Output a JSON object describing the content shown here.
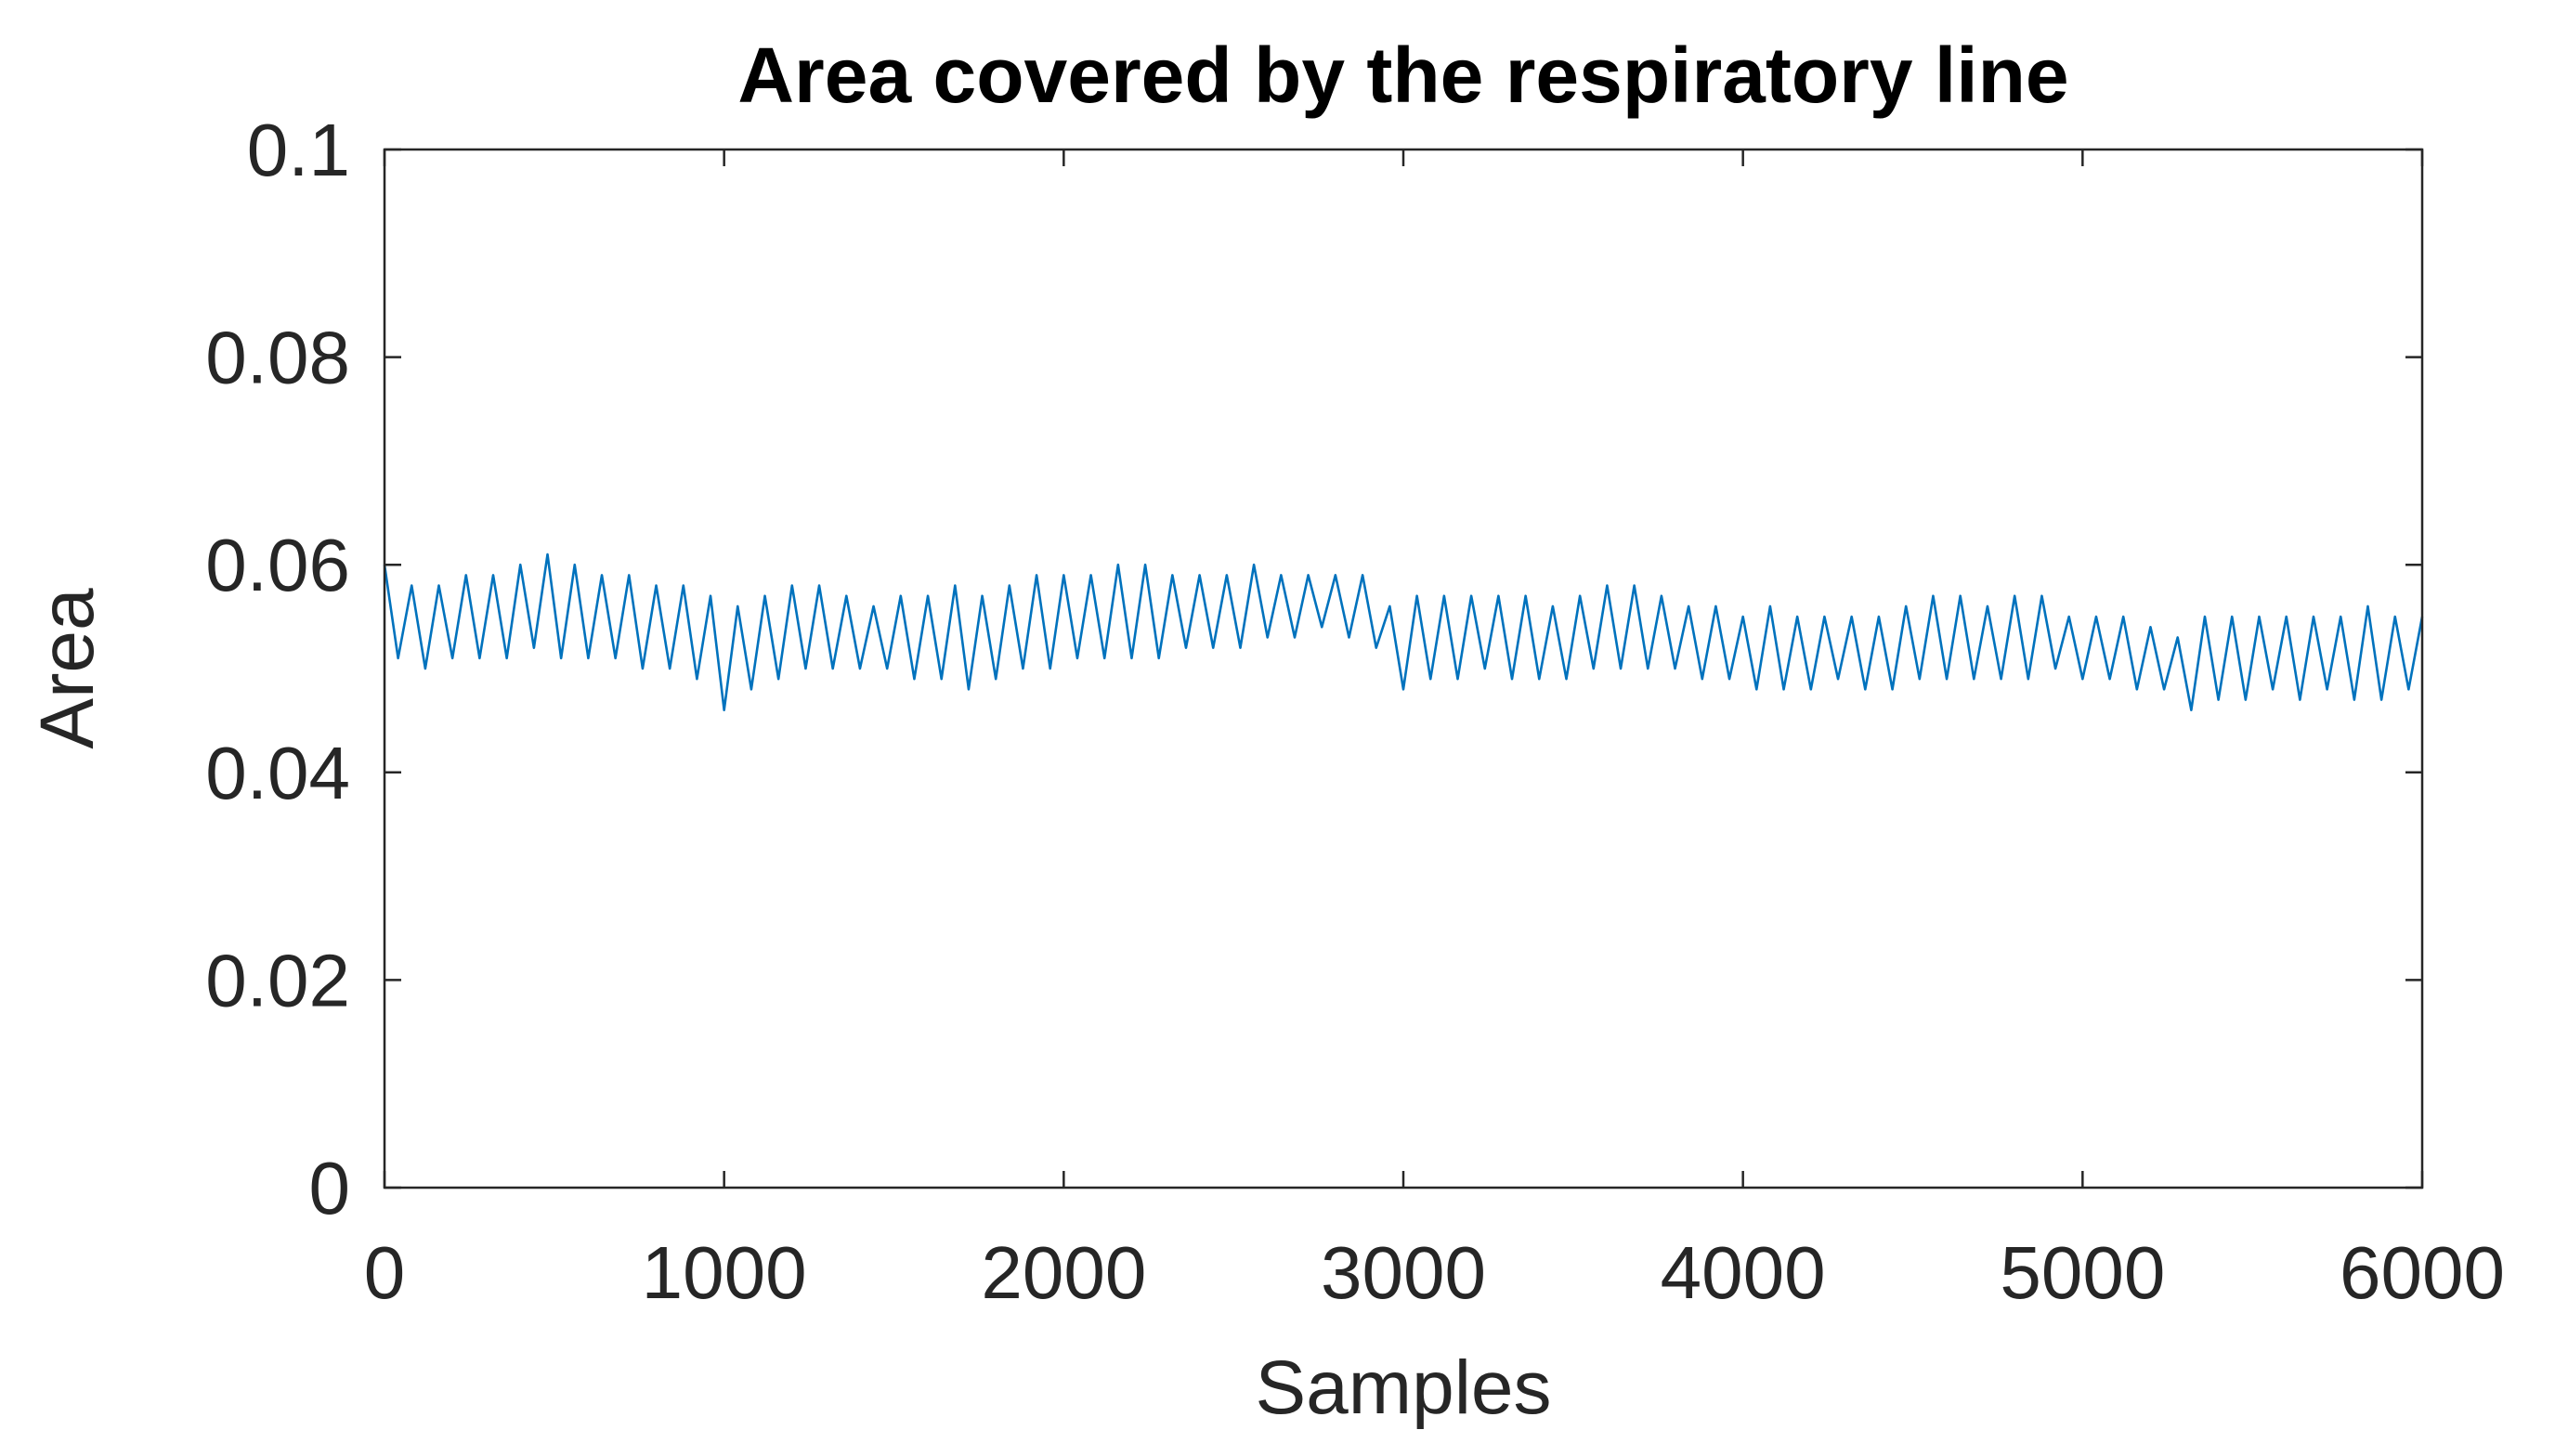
{
  "chart_data": {
    "type": "line",
    "title": "Area covered by the respiratory line",
    "xlabel": "Samples",
    "ylabel": "Area",
    "xlim": [
      0,
      6000
    ],
    "xticks": [
      0,
      1000,
      2000,
      3000,
      4000,
      5000,
      6000
    ],
    "ylim": [
      0,
      0.1
    ],
    "yticks": [
      0,
      0.02,
      0.04,
      0.06,
      0.08,
      0.1
    ],
    "box": true,
    "series": [
      {
        "color": "#0072bd",
        "x": [
          0,
          40,
          80,
          120,
          160,
          200,
          240,
          280,
          320,
          360,
          400,
          440,
          480,
          520,
          560,
          600,
          640,
          680,
          720,
          760,
          800,
          840,
          880,
          920,
          960,
          1000,
          1040,
          1080,
          1120,
          1160,
          1200,
          1240,
          1280,
          1320,
          1360,
          1400,
          1440,
          1480,
          1520,
          1560,
          1600,
          1640,
          1680,
          1720,
          1760,
          1800,
          1840,
          1880,
          1920,
          1960,
          2000,
          2040,
          2080,
          2120,
          2160,
          2200,
          2240,
          2280,
          2320,
          2360,
          2400,
          2440,
          2480,
          2520,
          2560,
          2600,
          2640,
          2680,
          2720,
          2760,
          2800,
          2840,
          2880,
          2920,
          2960,
          3000,
          3040,
          3080,
          3120,
          3160,
          3200,
          3240,
          3280,
          3320,
          3360,
          3400,
          3440,
          3480,
          3520,
          3560,
          3600,
          3640,
          3680,
          3720,
          3760,
          3800,
          3840,
          3880,
          3920,
          3960,
          4000,
          4040,
          4080,
          4120,
          4160,
          4200,
          4240,
          4280,
          4320,
          4360,
          4400,
          4440,
          4480,
          4520,
          4560,
          4600,
          4640,
          4680,
          4720,
          4760,
          4800,
          4840,
          4880,
          4920,
          4960,
          5000,
          5040,
          5080,
          5120,
          5160,
          5200,
          5240,
          5280,
          5320,
          5360,
          5400,
          5440,
          5480,
          5520,
          5560,
          5600,
          5640,
          5680,
          5720,
          5760,
          5800,
          5840,
          5880,
          5920,
          5960,
          6000
        ],
        "values": [
          0.06,
          0.051,
          0.058,
          0.05,
          0.058,
          0.051,
          0.059,
          0.051,
          0.059,
          0.051,
          0.06,
          0.052,
          0.061,
          0.051,
          0.06,
          0.051,
          0.059,
          0.051,
          0.059,
          0.05,
          0.058,
          0.05,
          0.058,
          0.049,
          0.057,
          0.046,
          0.056,
          0.048,
          0.057,
          0.049,
          0.058,
          0.05,
          0.058,
          0.05,
          0.057,
          0.05,
          0.056,
          0.05,
          0.057,
          0.049,
          0.057,
          0.049,
          0.058,
          0.048,
          0.057,
          0.049,
          0.058,
          0.05,
          0.059,
          0.05,
          0.059,
          0.051,
          0.059,
          0.051,
          0.06,
          0.051,
          0.06,
          0.051,
          0.059,
          0.052,
          0.059,
          0.052,
          0.059,
          0.052,
          0.06,
          0.053,
          0.059,
          0.053,
          0.059,
          0.054,
          0.059,
          0.053,
          0.059,
          0.052,
          0.056,
          0.048,
          0.057,
          0.049,
          0.057,
          0.049,
          0.057,
          0.05,
          0.057,
          0.049,
          0.057,
          0.049,
          0.056,
          0.049,
          0.057,
          0.05,
          0.058,
          0.05,
          0.058,
          0.05,
          0.057,
          0.05,
          0.056,
          0.049,
          0.056,
          0.049,
          0.055,
          0.048,
          0.056,
          0.048,
          0.055,
          0.048,
          0.055,
          0.049,
          0.055,
          0.048,
          0.055,
          0.048,
          0.056,
          0.049,
          0.057,
          0.049,
          0.057,
          0.049,
          0.056,
          0.049,
          0.057,
          0.049,
          0.057,
          0.05,
          0.055,
          0.049,
          0.055,
          0.049,
          0.055,
          0.048,
          0.054,
          0.048,
          0.053,
          0.046,
          0.055,
          0.047,
          0.055,
          0.047,
          0.055,
          0.048,
          0.055,
          0.047,
          0.055,
          0.048,
          0.055,
          0.047,
          0.056,
          0.047,
          0.055,
          0.048,
          0.055
        ]
      }
    ]
  }
}
